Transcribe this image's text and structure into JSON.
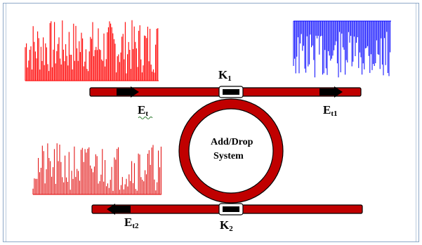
{
  "labels": {
    "k1_main": "K",
    "k1_sub": "1",
    "k2_main": "K",
    "k2_sub": "2",
    "et_main": "E",
    "et_sub": "t",
    "et1_main": "E",
    "et1_sub": "t1",
    "et2_main": "E",
    "et2_sub": "t2",
    "ring_line1": "Add/Drop",
    "ring_line2": "System"
  },
  "colors": {
    "frame": "#8ea9c8",
    "waveguide": "#c00000",
    "outline": "#000000",
    "coupler": "#ffffff",
    "arrow": "#000000",
    "signal_input": "#ff0000",
    "signal_drop": "#e00000",
    "signal_through": "#0000ff",
    "squiggle": "#2e7d32"
  },
  "icons": {
    "arrow_right": "arrow-right-icon",
    "arrow_left": "arrow-left-icon"
  }
}
